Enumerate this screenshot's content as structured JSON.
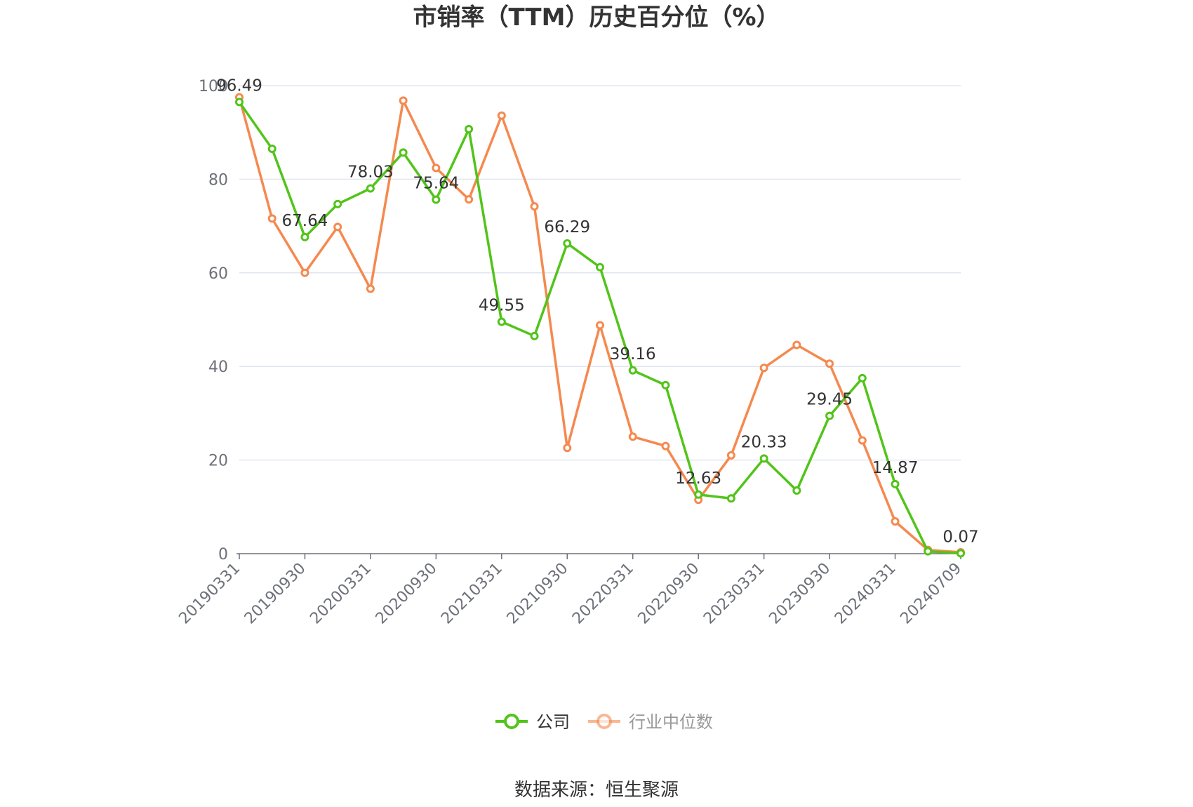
{
  "chart_data": {
    "type": "line",
    "title": "市销率（TTM）历史百分位（%）",
    "x": [
      "20190331",
      "20190630",
      "20190930",
      "20191231",
      "20200331",
      "20200630",
      "20200930",
      "20201231",
      "20210331",
      "20210630",
      "20210930",
      "20211231",
      "20220331",
      "20220630",
      "20220930",
      "20221231",
      "20230331",
      "20230630",
      "20230930",
      "20231231",
      "20240331",
      "20240630",
      "20240709"
    ],
    "x_tick_labels": [
      "20190331",
      "20190930",
      "20200331",
      "20200930",
      "20210331",
      "20210930",
      "20220331",
      "20220930",
      "20230331",
      "20230930",
      "20240331",
      "20240709"
    ],
    "y_ticks": [
      "0",
      "20",
      "40",
      "60",
      "80",
      "100"
    ],
    "ylim": [
      0,
      100
    ],
    "grid": true,
    "legend_position": "bottom",
    "series": [
      {
        "name": "公司",
        "color": "#52c41a",
        "values": [
          96.49,
          86.5,
          67.64,
          74.7,
          78.03,
          85.7,
          75.64,
          90.7,
          49.55,
          46.5,
          66.29,
          61.2,
          39.16,
          36.0,
          12.63,
          11.8,
          20.33,
          13.5,
          29.45,
          37.5,
          14.87,
          0.5,
          0.07
        ]
      },
      {
        "name": "行业中位数",
        "color": "#f5894f",
        "values": [
          97.5,
          71.6,
          60.0,
          69.8,
          56.6,
          96.8,
          82.4,
          75.7,
          93.6,
          74.2,
          22.6,
          48.8,
          25.0,
          23.0,
          11.5,
          21.0,
          39.7,
          44.6,
          40.6,
          24.2,
          6.9,
          0.8,
          0.3
        ]
      }
    ],
    "data_labels": [
      {
        "index": 0,
        "text": "96.49"
      },
      {
        "index": 2,
        "text": "67.64"
      },
      {
        "index": 4,
        "text": "78.03"
      },
      {
        "index": 6,
        "text": "75.64"
      },
      {
        "index": 8,
        "text": "49.55"
      },
      {
        "index": 10,
        "text": "66.29"
      },
      {
        "index": 12,
        "text": "39.16"
      },
      {
        "index": 14,
        "text": "12.63"
      },
      {
        "index": 16,
        "text": "20.33"
      },
      {
        "index": 18,
        "text": "29.45"
      },
      {
        "index": 20,
        "text": "14.87"
      },
      {
        "index": 22,
        "text": "0.07"
      }
    ],
    "axis_color": "#6e7079",
    "grid_color": "#e0e6f1"
  },
  "legend": {
    "items": [
      {
        "label": "公司",
        "color": "#52c41a"
      },
      {
        "label": "行业中位数",
        "color": "#f5894f"
      }
    ]
  },
  "source_text": "数据来源：恒生聚源"
}
